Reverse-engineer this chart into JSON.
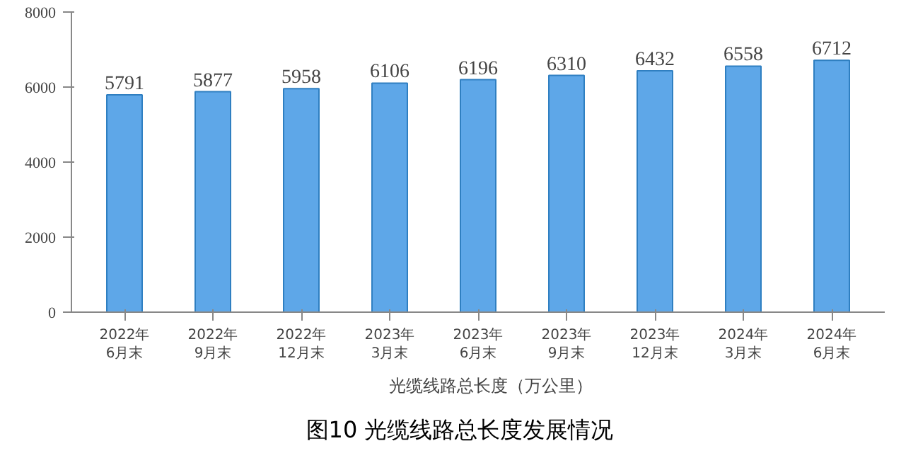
{
  "chart_data": {
    "type": "bar",
    "title": "图10 光缆线路总长度发展情况",
    "categories": [
      "2022年\n6月末",
      "2022年\n9月末",
      "2022年\n12月末",
      "2023年\n3月末",
      "2023年\n6月末",
      "2023年\n9月末",
      "2023年\n12月末",
      "2024年\n3月末",
      "2024年\n6月末"
    ],
    "series": [
      {
        "name": "光缆线路总长度（万公里）",
        "color": "#5ea7e8",
        "values": [
          5791,
          5877,
          5958,
          6106,
          6196,
          6310,
          6432,
          6558,
          6712
        ]
      }
    ],
    "ylim": [
      0,
      8000
    ],
    "yticks": [
      0,
      2000,
      4000,
      6000,
      8000
    ],
    "data_labels": true,
    "legend": "bottom",
    "grid": false
  }
}
